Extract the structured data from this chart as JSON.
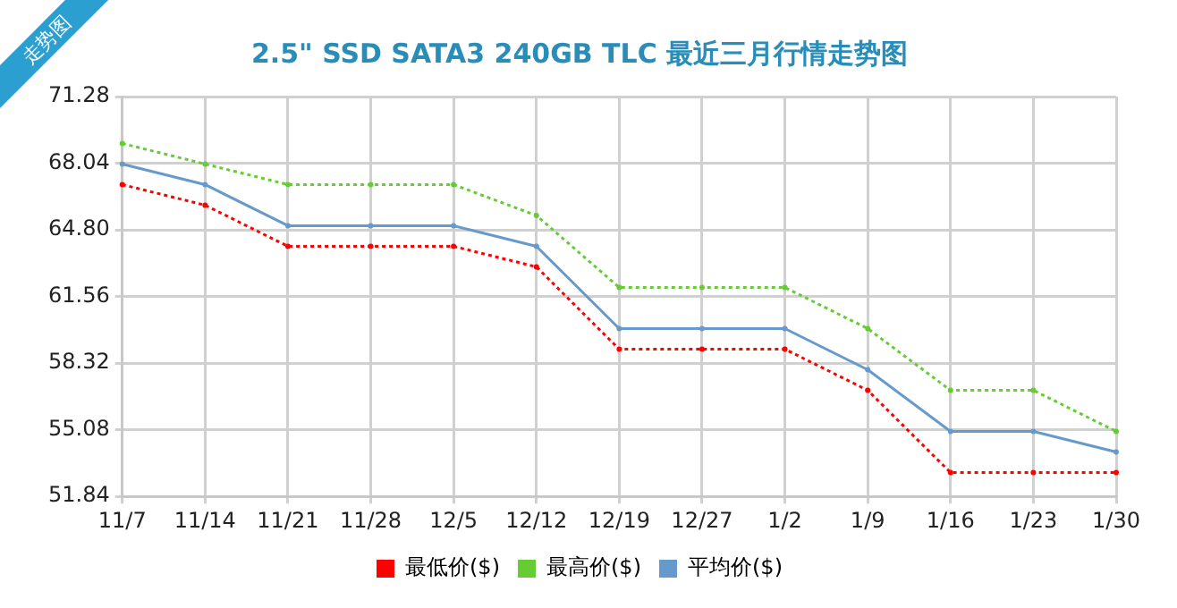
{
  "chart_data": {
    "type": "line",
    "title": "2.5\" SSD SATA3 240GB TLC 最近三月行情走势图",
    "annotations": [
      "走势图"
    ],
    "categories": [
      "11/7",
      "11/14",
      "11/21",
      "11/28",
      "12/5",
      "12/12",
      "12/19",
      "12/27",
      "1/2",
      "1/9",
      "1/16",
      "1/23",
      "1/30"
    ],
    "series": [
      {
        "name": "最低价($)",
        "color": "#ff0000",
        "line_style": "dotted",
        "values": [
          67,
          66,
          64,
          64,
          64,
          63,
          59,
          59,
          59,
          57,
          53,
          53,
          53
        ]
      },
      {
        "name": "最高价($)",
        "color": "#66cc33",
        "line_style": "dotted",
        "values": [
          69,
          68,
          67,
          67,
          67,
          65.5,
          62,
          62,
          62,
          60,
          57,
          57,
          55
        ]
      },
      {
        "name": "平均价($)",
        "color": "#6699cc",
        "line_style": "solid",
        "values": [
          68,
          67,
          65,
          65,
          65,
          64,
          60,
          60,
          60,
          58,
          55,
          55,
          54
        ]
      }
    ],
    "ylim": [
      51.84,
      71.28
    ],
    "yticks": [
      51.84,
      55.08,
      58.32,
      61.56,
      {
        "value": 64.8,
        "label": "64.80"
      },
      68.04,
      71.28
    ],
    "grid": true,
    "legend": "bottom",
    "marker": "circle"
  }
}
